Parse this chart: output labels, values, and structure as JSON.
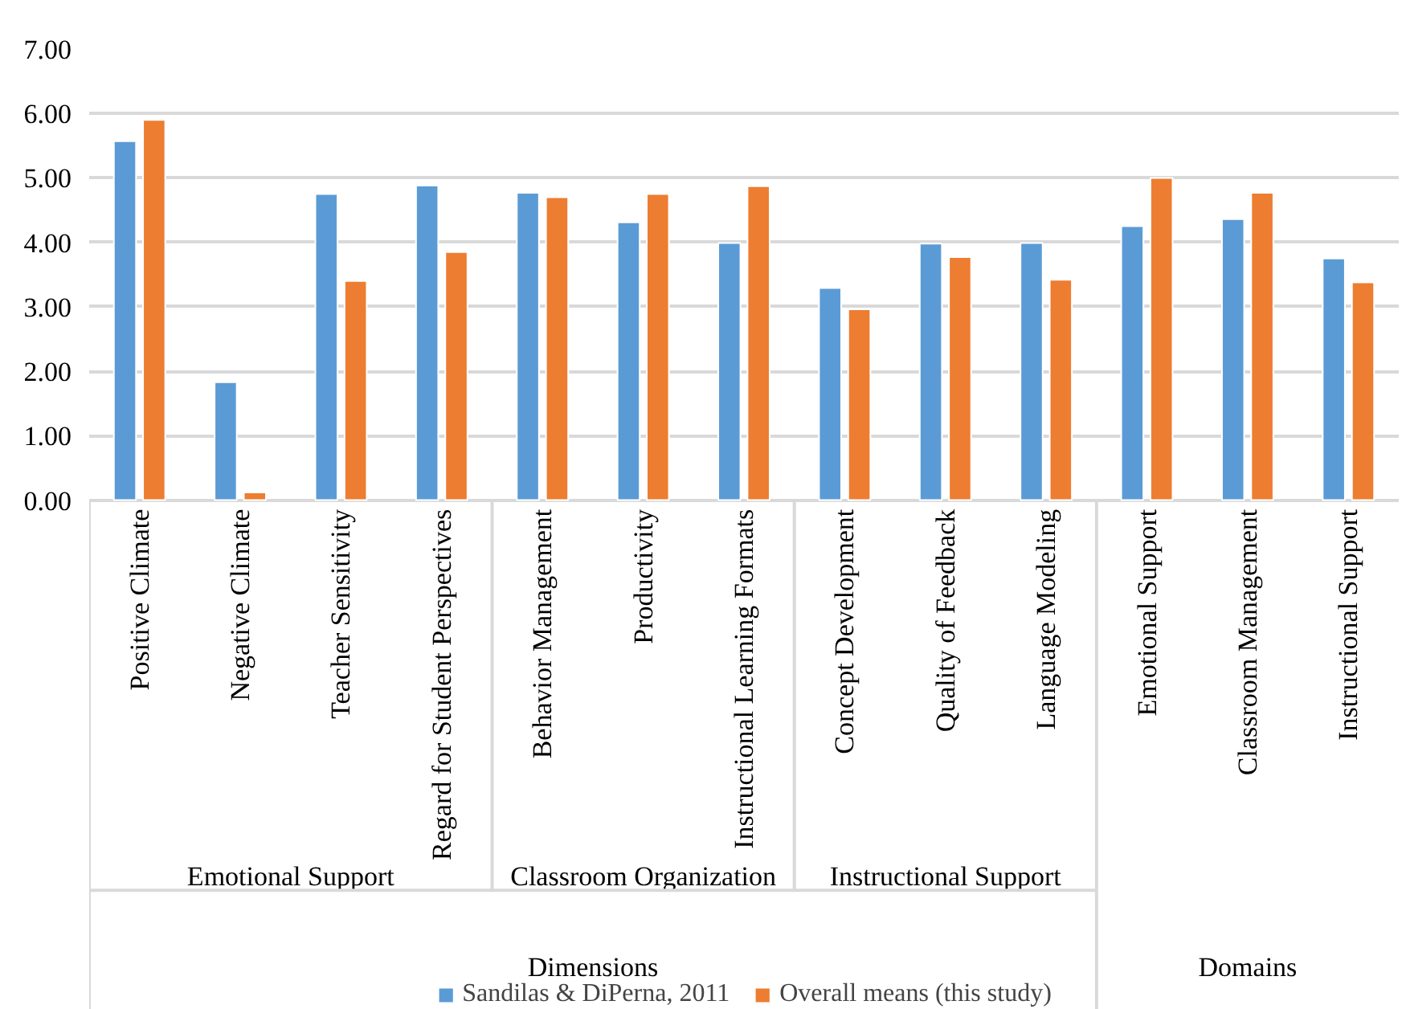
{
  "chart_data": {
    "type": "bar",
    "categories": [
      "Positive Climate",
      "Negative Climate",
      "Teacher Sensitivity",
      "Regard for Student Perspectives",
      "Behavior Management",
      "Productivity",
      "Instructional Learning Formats",
      "Concept Development",
      "Quality of Feedback",
      "Language Modeling",
      "Emotional Support",
      "Classroom Management",
      "Instructional Support"
    ],
    "series": [
      {
        "name": "Sandilas & DiPerna, 2011",
        "color": "#5b9bd5",
        "values": [
          5.57,
          1.83,
          4.75,
          4.88,
          4.77,
          4.31,
          3.99,
          3.29,
          3.98,
          3.99,
          4.25,
          4.36,
          3.75
        ]
      },
      {
        "name": "Overall means (this study)",
        "color": "#ed7d31",
        "values": [
          5.9,
          0.12,
          3.4,
          3.85,
          4.7,
          4.75,
          4.87,
          2.96,
          3.77,
          3.42,
          5.0,
          4.77,
          3.38
        ]
      }
    ],
    "ylim": [
      0,
      7
    ],
    "yticks": [
      {
        "value": 0,
        "label": "0.00"
      },
      {
        "value": 1,
        "label": "1.00"
      },
      {
        "value": 2,
        "label": "2.00"
      },
      {
        "value": 3,
        "label": "3.00"
      },
      {
        "value": 4,
        "label": "4.00"
      },
      {
        "value": 5,
        "label": "5.00"
      },
      {
        "value": 6,
        "label": "6.00"
      },
      {
        "value": 7,
        "label": "7.00"
      }
    ],
    "grid": "y",
    "legend": "bottom",
    "annotations": [
      "Emotional Support",
      "Classroom Organization",
      "Instructional Support",
      "Dimensions",
      "Domains"
    ]
  }
}
